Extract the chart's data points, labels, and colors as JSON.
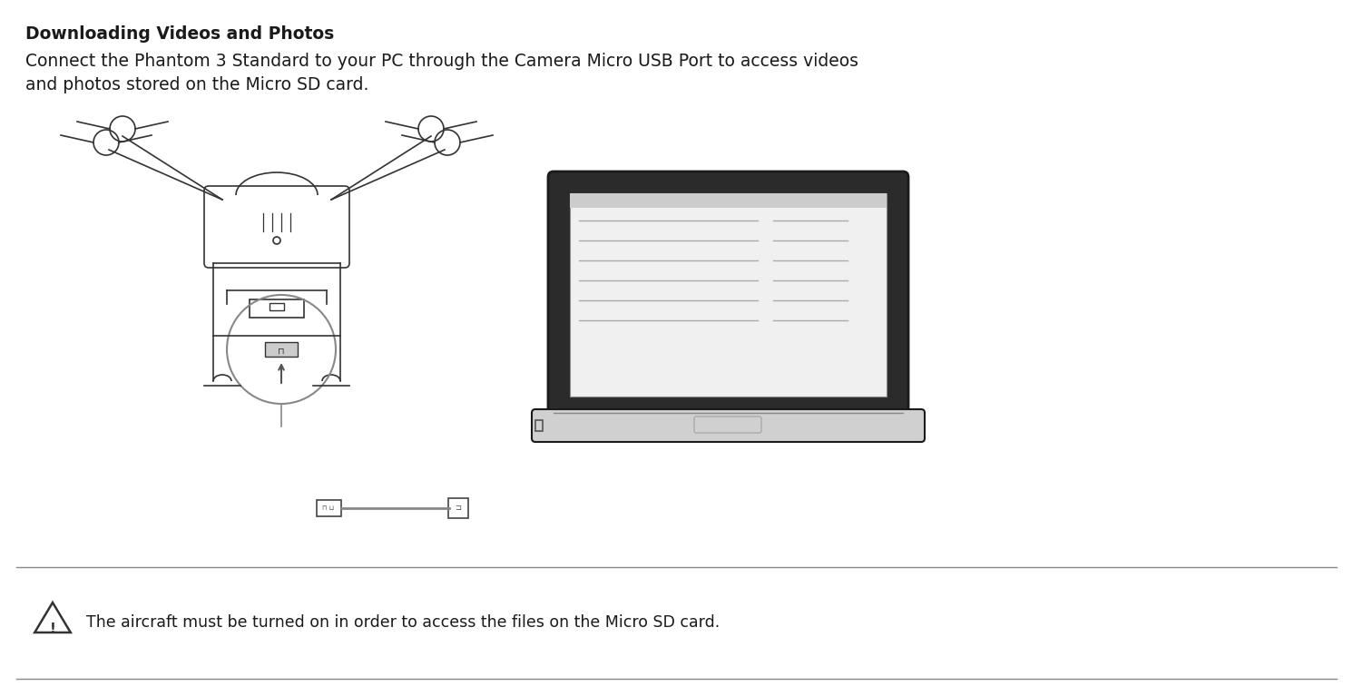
{
  "title": "Downloading Videos and Photos",
  "body_line1": "Connect the Phantom 3 Standard to your PC through the Camera Micro USB Port to access videos",
  "body_line2": "and photos stored on the Micro SD card.",
  "warning_text": "The aircraft must be turned on in order to access the files on the Micro SD card.",
  "bg_color": "#ffffff",
  "text_color": "#1a1a1a",
  "line_color": "#555555",
  "title_fontsize": 13.5,
  "body_fontsize": 13.5,
  "warning_fontsize": 12.5
}
